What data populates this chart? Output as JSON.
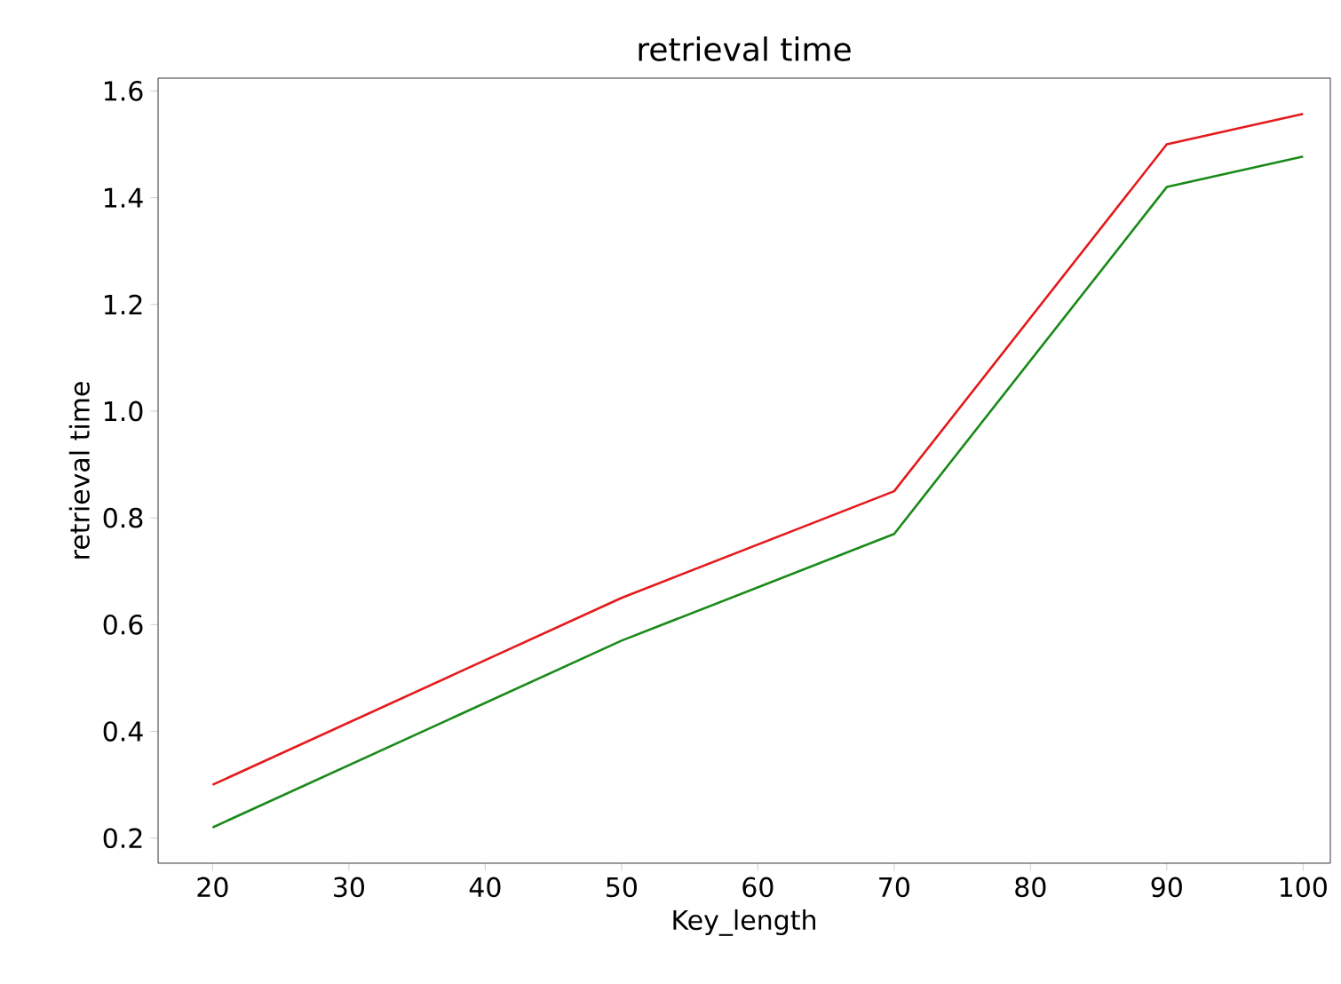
{
  "chart_data": {
    "type": "line",
    "title": "retrieval  time",
    "xlabel": "Key_length",
    "ylabel": "retrieval  time",
    "x": [
      20,
      50,
      70,
      90,
      100
    ],
    "series": [
      {
        "color": "#e41a1c",
        "values": [
          0.3,
          0.65,
          0.85,
          1.5,
          1.557
        ]
      },
      {
        "color": "#1a8a1a",
        "values": [
          0.22,
          0.57,
          0.77,
          1.42,
          1.477
        ]
      }
    ],
    "xlim": [
      16,
      102
    ],
    "ylim": [
      0.153,
      1.624
    ],
    "xticks": [
      20,
      30,
      40,
      50,
      60,
      70,
      80,
      90,
      100
    ],
    "yticks": [
      {
        "value": 0.2,
        "label": "0.2"
      },
      {
        "value": 0.4,
        "label": "0.4"
      },
      {
        "value": 0.6,
        "label": "0.6"
      },
      {
        "value": 0.8,
        "label": "0.8"
      },
      {
        "value": 1.0,
        "label": "1.0"
      },
      {
        "value": 1.2,
        "label": "1.2"
      },
      {
        "value": 1.4,
        "label": "1.4"
      },
      {
        "value": 1.6,
        "label": "1.6"
      }
    ],
    "grid": false
  }
}
